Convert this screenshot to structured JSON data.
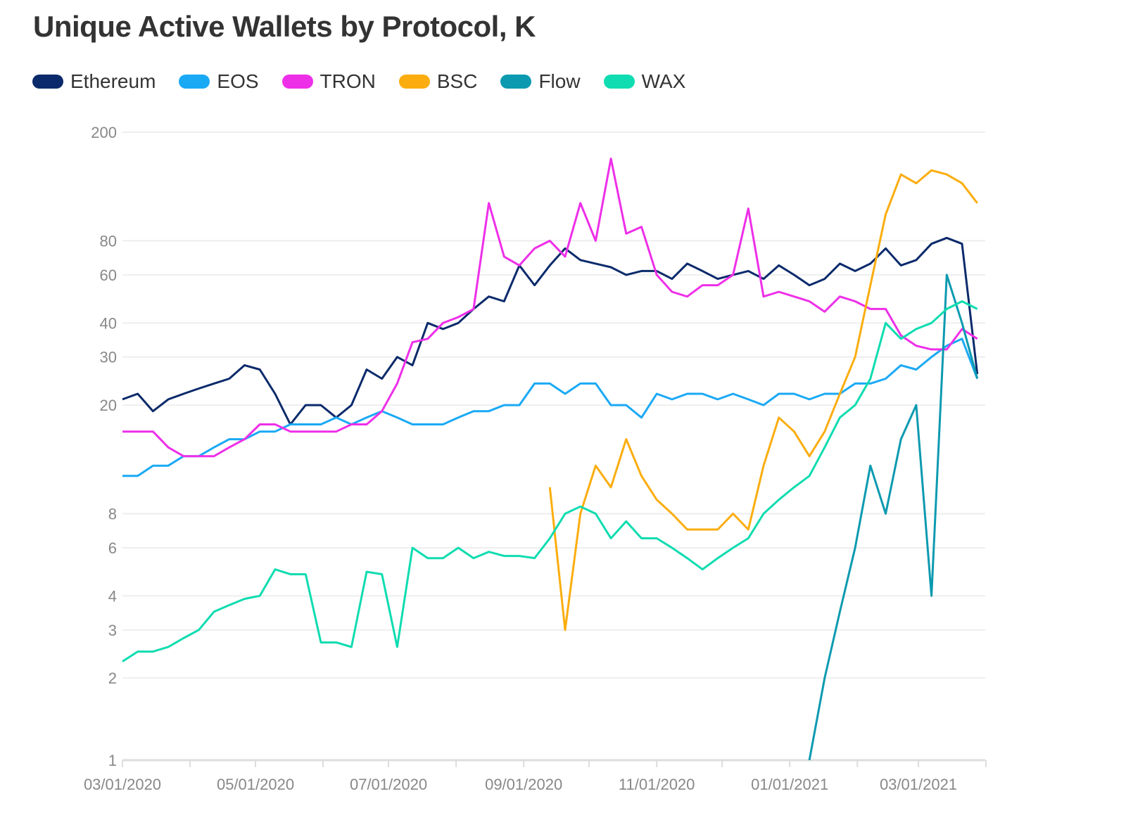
{
  "chart_data": {
    "type": "line",
    "title": "Unique Active Wallets by Protocol, K",
    "xlabel": "",
    "ylabel": "",
    "y_scale": "log",
    "ylim": [
      1,
      200
    ],
    "y_ticks": [
      1,
      2,
      3,
      4,
      6,
      8,
      20,
      30,
      40,
      60,
      80,
      200
    ],
    "x_tick_labels": [
      "03/01/2020",
      "05/01/2020",
      "07/01/2020",
      "09/01/2020",
      "11/01/2020",
      "01/01/2021",
      "03/01/2021"
    ],
    "x_minor_ticks": [
      "2020-03-01",
      "2020-04-01",
      "2020-05-01",
      "2020-06-01",
      "2020-07-01",
      "2020-08-01",
      "2020-09-01",
      "2020-10-01",
      "2020-11-01",
      "2020-12-01",
      "2021-01-01",
      "2021-02-01",
      "2021-03-01",
      "2021-04-01"
    ],
    "grid": "horizontal",
    "legend": "top-left",
    "x": [
      "2020-03-01",
      "2020-03-08",
      "2020-03-15",
      "2020-03-22",
      "2020-03-29",
      "2020-04-05",
      "2020-04-12",
      "2020-04-19",
      "2020-04-26",
      "2020-05-03",
      "2020-05-10",
      "2020-05-17",
      "2020-05-24",
      "2020-05-31",
      "2020-06-07",
      "2020-06-14",
      "2020-06-21",
      "2020-06-28",
      "2020-07-05",
      "2020-07-12",
      "2020-07-19",
      "2020-07-26",
      "2020-08-02",
      "2020-08-09",
      "2020-08-16",
      "2020-08-23",
      "2020-08-30",
      "2020-09-06",
      "2020-09-13",
      "2020-09-20",
      "2020-09-27",
      "2020-10-04",
      "2020-10-11",
      "2020-10-18",
      "2020-10-25",
      "2020-11-01",
      "2020-11-08",
      "2020-11-15",
      "2020-11-22",
      "2020-11-29",
      "2020-12-06",
      "2020-12-13",
      "2020-12-20",
      "2020-12-27",
      "2021-01-03",
      "2021-01-10",
      "2021-01-17",
      "2021-01-24",
      "2021-01-31",
      "2021-02-07",
      "2021-02-14",
      "2021-02-21",
      "2021-02-28",
      "2021-03-07",
      "2021-03-14",
      "2021-03-21",
      "2021-03-28"
    ],
    "series": [
      {
        "name": "Ethereum",
        "color": "#0b2a6b",
        "values": [
          21,
          22,
          19,
          21,
          22,
          23,
          24,
          25,
          28,
          27,
          22,
          17,
          20,
          20,
          18,
          20,
          27,
          25,
          30,
          28,
          40,
          38,
          40,
          45,
          50,
          48,
          65,
          55,
          65,
          75,
          68,
          66,
          64,
          60,
          62,
          62,
          58,
          66,
          62,
          58,
          60,
          62,
          58,
          65,
          60,
          55,
          58,
          66,
          62,
          66,
          75,
          65,
          68,
          78,
          82,
          78,
          26
        ]
      },
      {
        "name": "EOS",
        "color": "#1aa9f5",
        "values": [
          11,
          11,
          12,
          12,
          13,
          13,
          14,
          15,
          15,
          16,
          16,
          17,
          17,
          17,
          18,
          17,
          18,
          19,
          18,
          17,
          17,
          17,
          18,
          19,
          19,
          20,
          20,
          24,
          24,
          22,
          24,
          24,
          20,
          20,
          18,
          22,
          21,
          22,
          22,
          21,
          22,
          21,
          20,
          22,
          22,
          21,
          22,
          22,
          24,
          24,
          25,
          28,
          27,
          30,
          33,
          35,
          25
        ]
      },
      {
        "name": "TRON",
        "color": "#ee2fe8",
        "values": [
          16,
          16,
          16,
          14,
          13,
          13,
          13,
          14,
          15,
          17,
          17,
          16,
          16,
          16,
          16,
          17,
          17,
          19,
          24,
          34,
          35,
          40,
          42,
          45,
          110,
          70,
          65,
          75,
          80,
          70,
          110,
          80,
          160,
          85,
          90,
          60,
          52,
          50,
          55,
          55,
          60,
          105,
          50,
          52,
          50,
          48,
          44,
          50,
          48,
          45,
          45,
          36,
          33,
          32,
          32,
          38,
          35
        ]
      },
      {
        "name": "BSC",
        "color": "#fbad0f",
        "values": [
          null,
          null,
          null,
          null,
          null,
          null,
          null,
          null,
          null,
          null,
          null,
          null,
          null,
          null,
          null,
          null,
          null,
          null,
          null,
          null,
          null,
          null,
          null,
          null,
          null,
          null,
          null,
          null,
          10,
          3,
          8,
          12,
          10,
          15,
          11,
          9,
          8,
          7,
          7,
          7,
          8,
          7,
          12,
          18,
          16,
          13,
          16,
          22,
          30,
          55,
          100,
          140,
          130,
          145,
          140,
          130,
          110
        ]
      },
      {
        "name": "Flow",
        "color": "#0c9ab0",
        "values": [
          null,
          null,
          null,
          null,
          null,
          null,
          null,
          null,
          null,
          null,
          null,
          null,
          null,
          null,
          null,
          null,
          null,
          null,
          null,
          null,
          null,
          null,
          null,
          null,
          null,
          null,
          null,
          null,
          null,
          null,
          null,
          null,
          null,
          null,
          null,
          null,
          null,
          null,
          null,
          null,
          null,
          null,
          null,
          null,
          null,
          1,
          2,
          3.5,
          6,
          12,
          8,
          15,
          20,
          4,
          60,
          40,
          25
        ]
      },
      {
        "name": "WAX",
        "color": "#0fdcb0",
        "values": [
          2.3,
          2.5,
          2.5,
          2.6,
          2.8,
          3.0,
          3.5,
          3.7,
          3.9,
          4.0,
          5.0,
          4.8,
          4.8,
          2.7,
          2.7,
          2.6,
          4.9,
          4.8,
          2.6,
          6.0,
          5.5,
          5.5,
          6.0,
          5.5,
          5.8,
          5.6,
          5.6,
          5.5,
          6.5,
          8.0,
          8.5,
          8.0,
          6.5,
          7.5,
          6.5,
          6.5,
          6.0,
          5.5,
          5.0,
          5.5,
          6.0,
          6.5,
          8.0,
          9.0,
          10,
          11,
          14,
          18,
          20,
          25,
          40,
          35,
          38,
          40,
          45,
          48,
          45
        ]
      }
    ]
  }
}
